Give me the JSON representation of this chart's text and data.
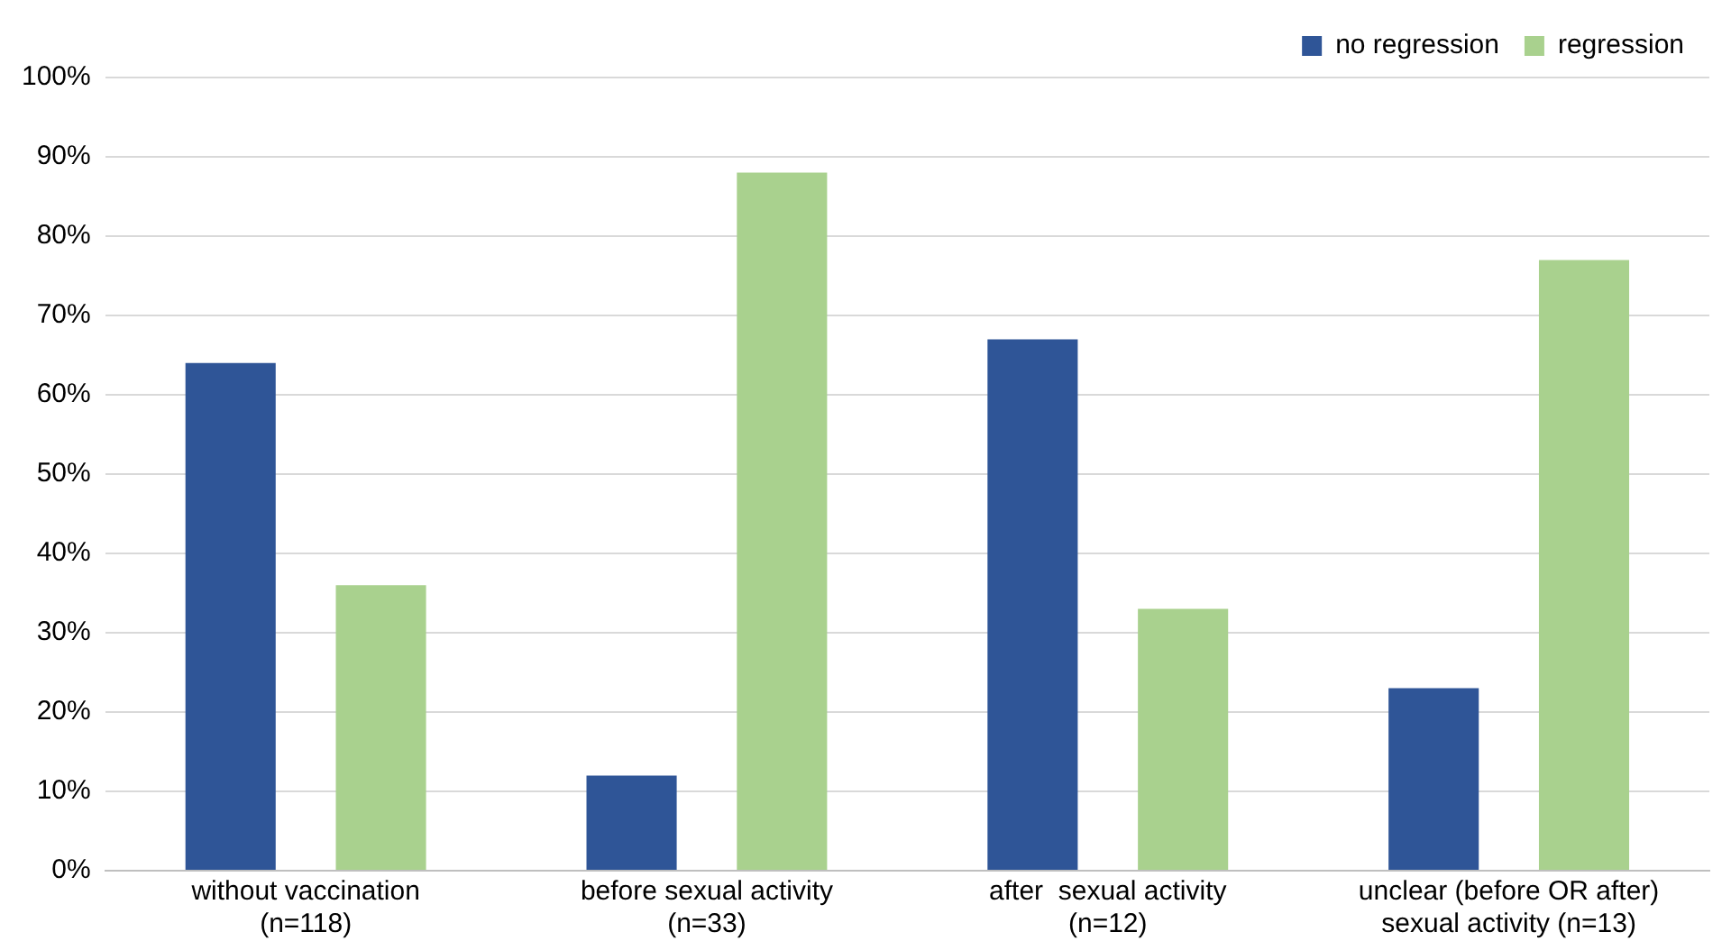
{
  "chart_data": {
    "type": "bar",
    "categories": [
      "without vaccination\n(n=118)",
      "before sexual activity\n(n=33)",
      "after  sexual activity\n(n=12)",
      "unclear (before OR after)\nsexual activity (n=13)"
    ],
    "series": [
      {
        "name": "no regression",
        "color": "#2f5597",
        "values": [
          64,
          12,
          67,
          23
        ]
      },
      {
        "name": "regression",
        "color": "#a9d18e",
        "values": [
          36,
          88,
          33,
          77
        ]
      }
    ],
    "ylim": [
      0,
      100
    ],
    "yticks": [
      {
        "value": 0,
        "label": "0%"
      },
      {
        "value": 10,
        "label": "10%"
      },
      {
        "value": 20,
        "label": "20%"
      },
      {
        "value": 30,
        "label": "30%"
      },
      {
        "value": 40,
        "label": "40%"
      },
      {
        "value": 50,
        "label": "50%"
      },
      {
        "value": 60,
        "label": "60%"
      },
      {
        "value": 70,
        "label": "70%"
      },
      {
        "value": 80,
        "label": "80%"
      },
      {
        "value": 90,
        "label": "90%"
      },
      {
        "value": 100,
        "label": "100%"
      }
    ],
    "grid": "y",
    "legend": "top right"
  }
}
